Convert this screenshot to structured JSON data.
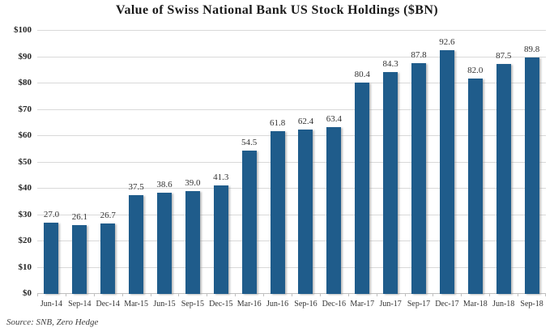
{
  "chart_data": {
    "type": "bar",
    "title": "Value of Swiss National Bank US Stock Holdings ($BN)",
    "categories": [
      "Jun-14",
      "Sep-14",
      "Dec-14",
      "Mar-15",
      "Jun-15",
      "Sep-15",
      "Dec-15",
      "Mar-16",
      "Jun-16",
      "Sep-16",
      "Dec-16",
      "Mar-17",
      "Jun-17",
      "Sep-17",
      "Dec-17",
      "Mar-18",
      "Jun-18",
      "Sep-18"
    ],
    "values": [
      27.0,
      26.1,
      26.7,
      37.5,
      38.6,
      39.0,
      41.3,
      54.5,
      61.8,
      62.4,
      63.4,
      80.4,
      84.3,
      87.8,
      92.6,
      82.0,
      87.5,
      89.8
    ],
    "value_labels": [
      "27.0",
      "26.1",
      "26.7",
      "37.5",
      "38.6",
      "39.0",
      "41.3",
      "54.5",
      "61.8",
      "62.4",
      "63.4",
      "80.4",
      "84.3",
      "87.8",
      "92.6",
      "82.0",
      "87.5",
      "89.8"
    ],
    "xlabel": "",
    "ylabel": "",
    "ylim": [
      0,
      100
    ],
    "ytick_step": 10,
    "ytick_labels": [
      "$0",
      "$10",
      "$20",
      "$30",
      "$40",
      "$50",
      "$60",
      "$70",
      "$80",
      "$90",
      "$100"
    ],
    "grid": "horizontal",
    "legend": "none",
    "bar_color": "#1f5c8b",
    "gridline_color": "#d9d9d9",
    "source": "Source: SNB, Zero Hedge"
  }
}
